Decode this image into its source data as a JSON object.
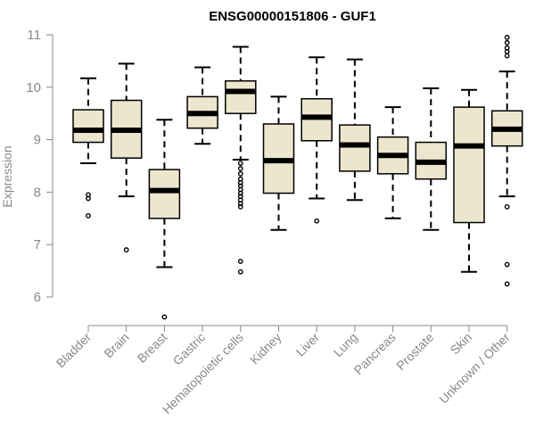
{
  "chart_data": {
    "type": "boxplot",
    "title": "ENSG00000151806 - GUF1",
    "xlabel": "",
    "ylabel": "Expression",
    "ylim": [
      6,
      11
    ],
    "yticks": [
      6,
      7,
      8,
      9,
      10,
      11
    ],
    "grid": false,
    "box_fill": "#ede6cf",
    "box_stroke": "#000000",
    "axis_color": "#888888",
    "categories": [
      "Bladder",
      "Brain",
      "Breast",
      "Gastric",
      "Hematopoietic cells",
      "Kidney",
      "Liver",
      "Lung",
      "Pancreas",
      "Prostate",
      "Skin",
      "Unknown / Other"
    ],
    "boxes": [
      {
        "name": "Bladder",
        "min": 8.55,
        "q1": 8.95,
        "median": 9.18,
        "q3": 9.57,
        "max": 10.17,
        "outliers": [
          7.95,
          7.88,
          7.55
        ]
      },
      {
        "name": "Brain",
        "min": 7.92,
        "q1": 8.65,
        "median": 9.18,
        "q3": 9.75,
        "max": 10.45,
        "outliers": [
          6.9
        ]
      },
      {
        "name": "Breast",
        "min": 6.57,
        "q1": 7.5,
        "median": 8.03,
        "q3": 8.43,
        "max": 9.38,
        "outliers": [
          5.62
        ]
      },
      {
        "name": "Gastric",
        "min": 8.92,
        "q1": 9.22,
        "median": 9.5,
        "q3": 9.82,
        "max": 10.38,
        "outliers": []
      },
      {
        "name": "Hematopoietic cells",
        "min": 8.62,
        "q1": 9.5,
        "median": 9.92,
        "q3": 10.12,
        "max": 10.77,
        "outliers": [
          8.55,
          8.45,
          8.35,
          8.25,
          8.18,
          8.12,
          8.05,
          7.98,
          7.92,
          7.85,
          7.78,
          7.72,
          6.68,
          6.48
        ]
      },
      {
        "name": "Kidney",
        "min": 7.28,
        "q1": 7.98,
        "median": 8.6,
        "q3": 9.3,
        "max": 9.82,
        "outliers": []
      },
      {
        "name": "Liver",
        "min": 7.88,
        "q1": 8.98,
        "median": 9.43,
        "q3": 9.78,
        "max": 10.57,
        "outliers": [
          7.45
        ]
      },
      {
        "name": "Lung",
        "min": 7.85,
        "q1": 8.4,
        "median": 8.9,
        "q3": 9.28,
        "max": 10.53,
        "outliers": []
      },
      {
        "name": "Pancreas",
        "min": 7.5,
        "q1": 8.35,
        "median": 8.7,
        "q3": 9.05,
        "max": 9.62,
        "outliers": []
      },
      {
        "name": "Prostate",
        "min": 7.28,
        "q1": 8.25,
        "median": 8.57,
        "q3": 8.95,
        "max": 9.98,
        "outliers": []
      },
      {
        "name": "Skin",
        "min": 6.48,
        "q1": 7.42,
        "median": 8.88,
        "q3": 9.62,
        "max": 9.95,
        "outliers": []
      },
      {
        "name": "Unknown / Other",
        "min": 7.92,
        "q1": 8.88,
        "median": 9.2,
        "q3": 9.55,
        "max": 10.3,
        "outliers": [
          10.95,
          10.85,
          10.75,
          10.68,
          10.6,
          7.72,
          6.62,
          6.25
        ]
      }
    ]
  }
}
